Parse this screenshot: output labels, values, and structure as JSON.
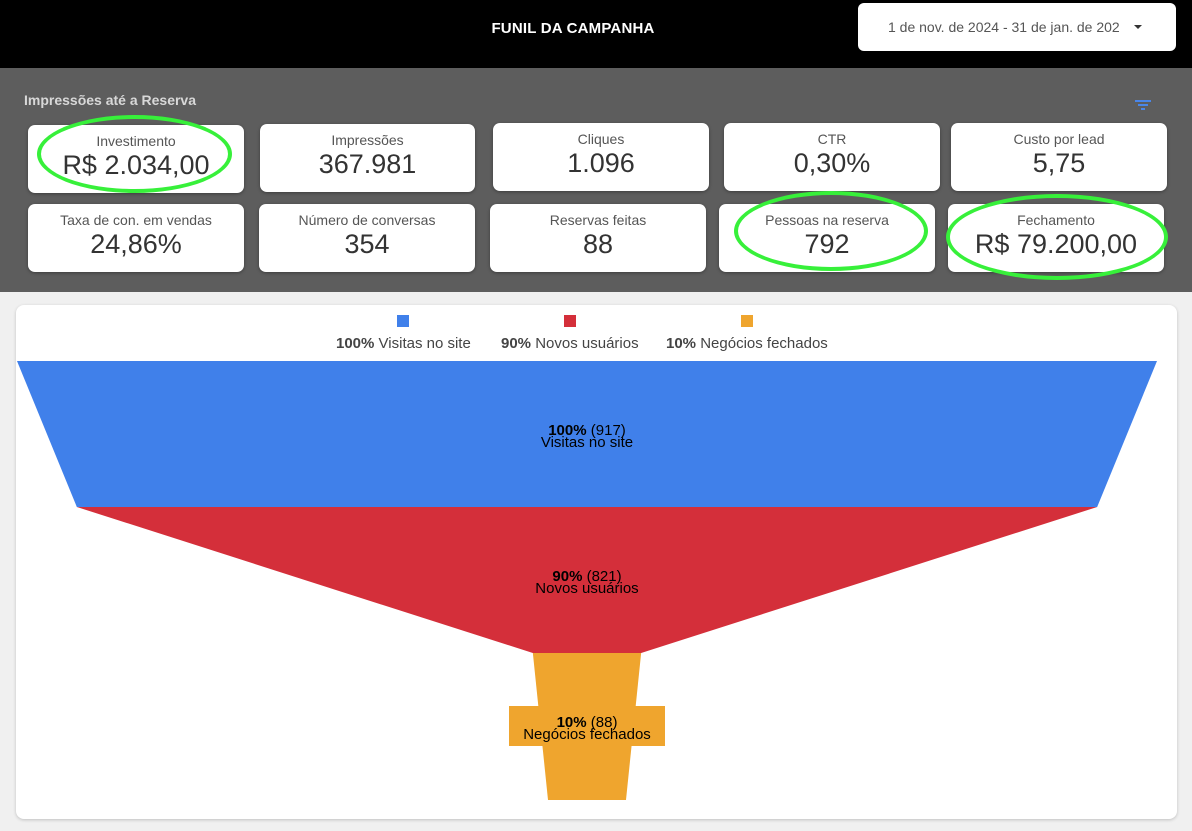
{
  "header": {
    "title": "FUNIL DA CAMPANHA",
    "date_range": "1 de nov. de 2024 - 31 de jan. de 202"
  },
  "kpi_section": {
    "title": "Impressões até a Reserva",
    "cards": [
      {
        "label": "Investimento",
        "value": "R$ 2.034,00",
        "highlighted": true
      },
      {
        "label": "Impressões",
        "value": "367.981",
        "highlighted": false
      },
      {
        "label": "Cliques",
        "value": "1.096",
        "highlighted": false
      },
      {
        "label": "CTR",
        "value": "0,30%",
        "highlighted": false
      },
      {
        "label": "Custo por lead",
        "value": "5,75",
        "highlighted": false
      },
      {
        "label": "Taxa de con. em vendas",
        "value": "24,86%",
        "highlighted": false
      },
      {
        "label": "Número de conversas",
        "value": "354",
        "highlighted": false
      },
      {
        "label": "Reservas feitas",
        "value": "88",
        "highlighted": false
      },
      {
        "label": "Pessoas na reserva",
        "value": "792",
        "highlighted": true
      },
      {
        "label": "Fechamento",
        "value": "R$ 79.200,00",
        "highlighted": true
      }
    ]
  },
  "colors": {
    "visitas": "#4080ea",
    "novos": "#d42f3a",
    "negocios": "#efa52e",
    "highlight": "#37f03a",
    "accent_icon": "#4a86e8"
  },
  "icons": {
    "date_caret": "caret-down-icon",
    "filter": "filter-icon"
  },
  "chart_data": {
    "type": "funnel",
    "legend_position": "top",
    "stages": [
      {
        "name": "Visitas no site",
        "percent": 100,
        "percent_label": "100%",
        "count_label": "(917)",
        "value": 917,
        "color": "#4080ea"
      },
      {
        "name": "Novos usuários",
        "percent": 90,
        "percent_label": "90%",
        "count_label": "(821)",
        "value": 821,
        "color": "#d42f3a"
      },
      {
        "name": "Negócios fechados",
        "percent": 10,
        "percent_label": "10%",
        "count_label": "(88)",
        "value": 88,
        "color": "#efa52e"
      }
    ]
  }
}
